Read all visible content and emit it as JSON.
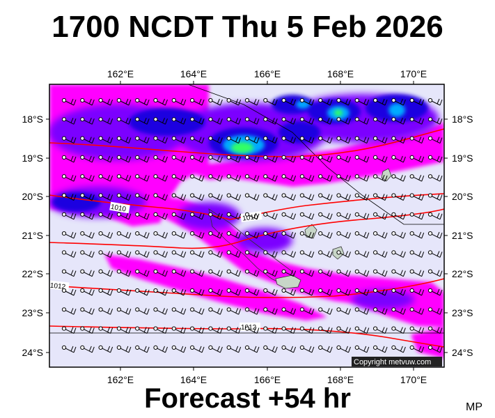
{
  "header": {
    "title": "1700 NCDT Thu 5 Feb 2026"
  },
  "footer": {
    "forecast": "Forecast +54 hr",
    "initials": "MP"
  },
  "map": {
    "lon_ticks": [
      "162°E",
      "164°E",
      "166°E",
      "168°E",
      "170°E"
    ],
    "lat_ticks": [
      "18°S",
      "19°S",
      "20°S",
      "21°S",
      "22°S",
      "23°S",
      "24°S"
    ],
    "copyright": "Copyright metvuw.com",
    "isobar_labels": [
      "1010",
      "1010",
      "1012",
      "1012"
    ],
    "colors": {
      "background": "#e6e6fa",
      "frame": "#000000",
      "isobar": "#ff0000",
      "light_rain": "#ff00ff",
      "moderate_rain": "#7b00ff",
      "heavy_rain": "#0000cc",
      "very_heavy_rain": "#00aaff",
      "extreme_rain": "#33ff66"
    },
    "wind_barbs": "west-southwest winds, 20 kt barbs on a regular grid"
  }
}
